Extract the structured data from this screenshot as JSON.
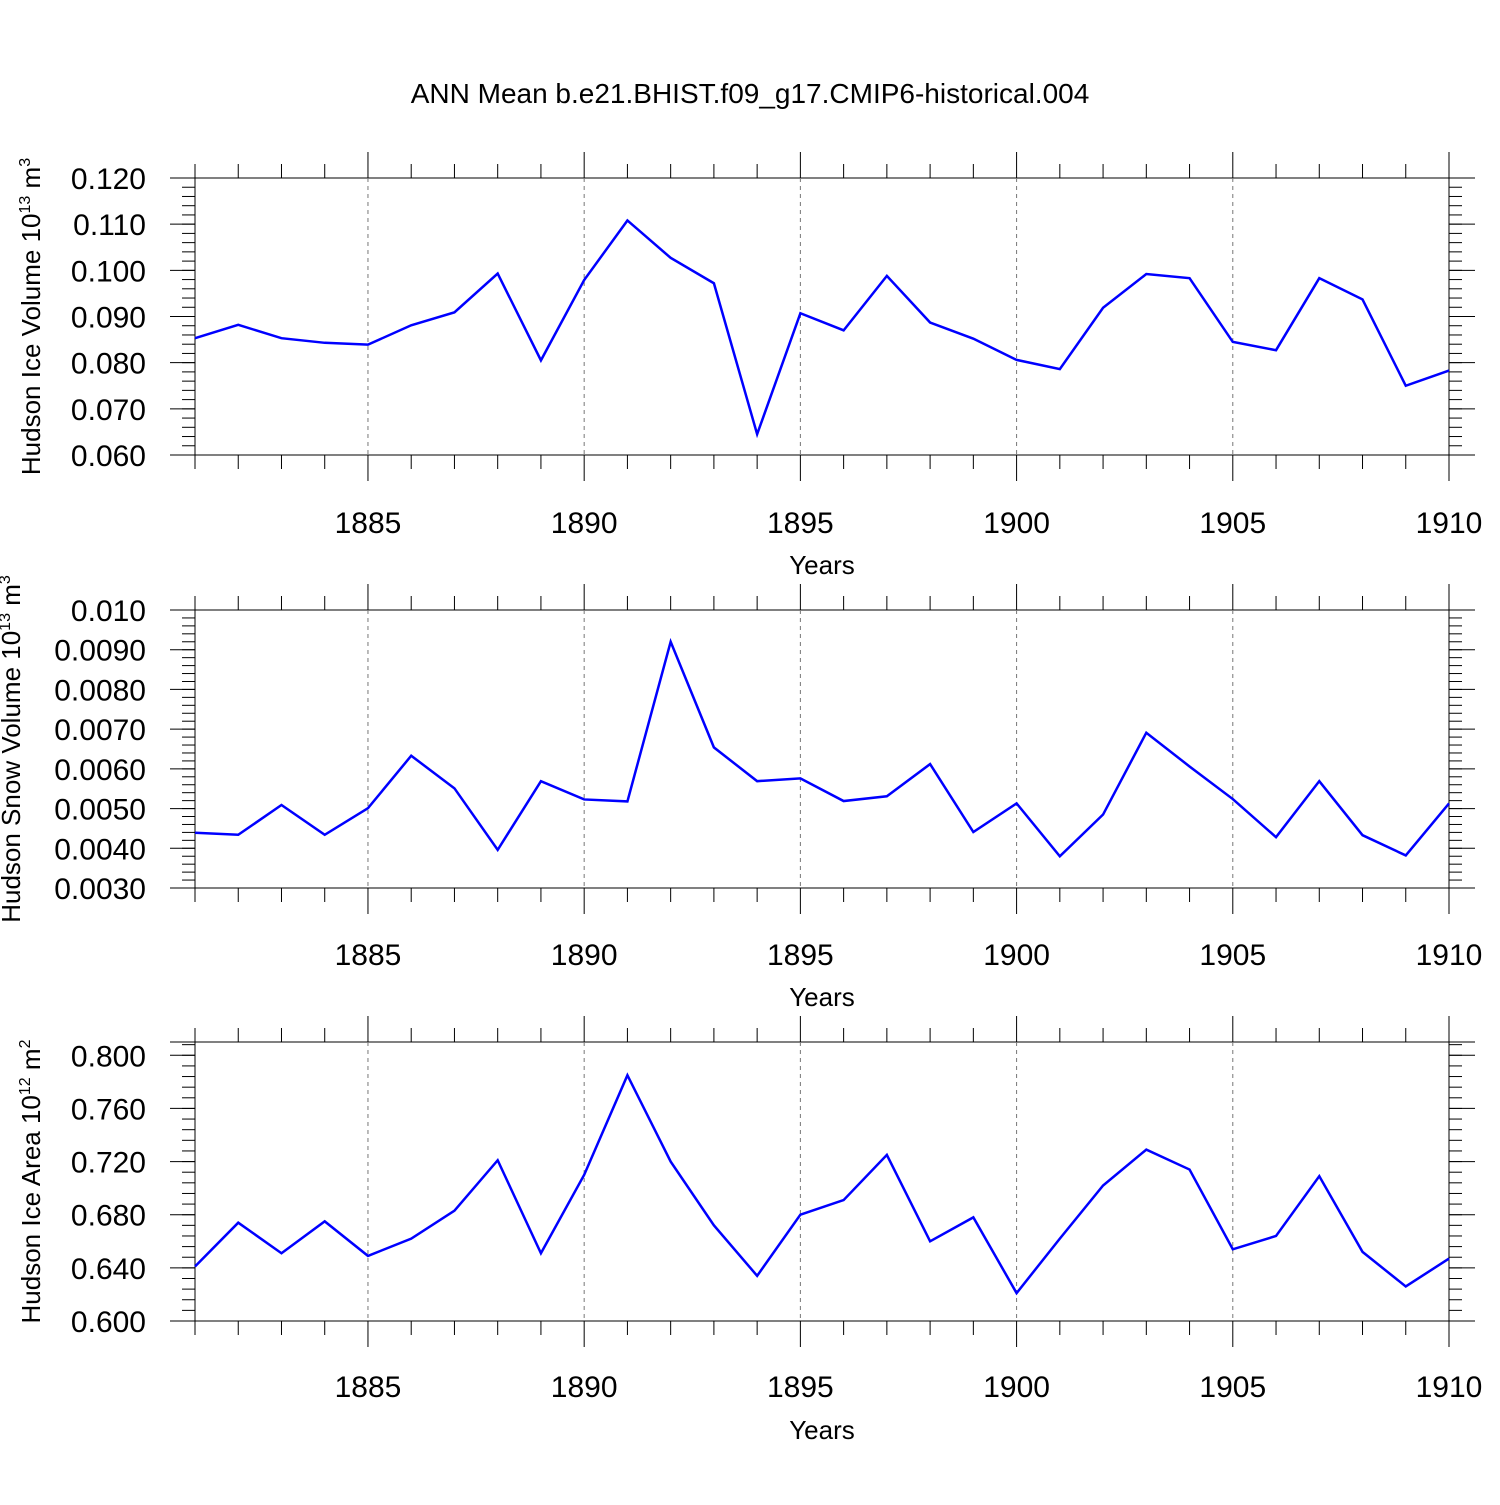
{
  "title": "ANN Mean b.e21.BHIST.f09_g17.CMIP6-historical.004",
  "line_color": "#0000ff",
  "chart_data": [
    {
      "type": "line",
      "ylabel": "Hudson Ice Volume 10",
      "ylabel_exp": "13",
      "ylabel_unit": " m",
      "ylabel_unit_exp": "3",
      "xlabel": "Years",
      "xlim": [
        1881,
        1910
      ],
      "ylim": [
        0.06,
        0.12
      ],
      "yticks": [
        "0.060",
        "0.070",
        "0.080",
        "0.090",
        "0.100",
        "0.110",
        "0.120"
      ],
      "xticks": [
        "1885",
        "1890",
        "1895",
        "1900",
        "1905",
        "1910"
      ],
      "x": [
        1881,
        1882,
        1883,
        1884,
        1885,
        1886,
        1887,
        1888,
        1889,
        1890,
        1891,
        1892,
        1893,
        1894,
        1895,
        1896,
        1897,
        1898,
        1899,
        1900,
        1901,
        1902,
        1903,
        1904,
        1905,
        1906,
        1907,
        1908,
        1909,
        1910
      ],
      "values": [
        0.0853,
        0.0882,
        0.0853,
        0.0843,
        0.0839,
        0.0881,
        0.0909,
        0.0993,
        0.0805,
        0.0979,
        0.1108,
        0.1027,
        0.0972,
        0.0645,
        0.0907,
        0.087,
        0.0988,
        0.0887,
        0.0852,
        0.0806,
        0.0786,
        0.0919,
        0.0992,
        0.0983,
        0.0845,
        0.0827,
        0.0983,
        0.0937,
        0.075,
        0.0783
      ]
    },
    {
      "type": "line",
      "ylabel": "Hudson Snow Volume 10",
      "ylabel_exp": "13",
      "ylabel_unit": " m",
      "ylabel_unit_exp": "3",
      "xlabel": "Years",
      "xlim": [
        1881,
        1910
      ],
      "ylim": [
        0.003,
        0.01
      ],
      "yticks": [
        "0.0030",
        "0.0040",
        "0.0050",
        "0.0060",
        "0.0070",
        "0.0080",
        "0.0090",
        "0.010"
      ],
      "xticks": [
        "1885",
        "1890",
        "1895",
        "1900",
        "1905",
        "1910"
      ],
      "x": [
        1881,
        1882,
        1883,
        1884,
        1885,
        1886,
        1887,
        1888,
        1889,
        1890,
        1891,
        1892,
        1893,
        1894,
        1895,
        1896,
        1897,
        1898,
        1899,
        1900,
        1901,
        1902,
        1903,
        1904,
        1905,
        1906,
        1907,
        1908,
        1909,
        1910
      ],
      "values": [
        0.00439,
        0.00434,
        0.00509,
        0.00434,
        0.00501,
        0.00633,
        0.00551,
        0.00396,
        0.00569,
        0.00523,
        0.00518,
        0.0092,
        0.00654,
        0.00569,
        0.00576,
        0.00519,
        0.00531,
        0.00612,
        0.00441,
        0.00513,
        0.0038,
        0.00485,
        0.00691,
        0.00606,
        0.00524,
        0.00428,
        0.00569,
        0.00433,
        0.00382,
        0.00513
      ]
    },
    {
      "type": "line",
      "ylabel": "Hudson Ice Area 10",
      "ylabel_exp": "12",
      "ylabel_unit": " m",
      "ylabel_unit_exp": "2",
      "xlabel": "Years",
      "xlim": [
        1881,
        1910
      ],
      "ylim": [
        0.6,
        0.81
      ],
      "yticks": [
        "0.600",
        "0.640",
        "0.680",
        "0.720",
        "0.760",
        "0.800"
      ],
      "xticks": [
        "1885",
        "1890",
        "1895",
        "1900",
        "1905",
        "1910"
      ],
      "x": [
        1881,
        1882,
        1883,
        1884,
        1885,
        1886,
        1887,
        1888,
        1889,
        1890,
        1891,
        1892,
        1893,
        1894,
        1895,
        1896,
        1897,
        1898,
        1899,
        1900,
        1901,
        1902,
        1903,
        1904,
        1905,
        1906,
        1907,
        1908,
        1909,
        1910
      ],
      "values": [
        0.641,
        0.674,
        0.651,
        0.675,
        0.649,
        0.662,
        0.683,
        0.721,
        0.651,
        0.71,
        0.785,
        0.72,
        0.672,
        0.634,
        0.68,
        0.691,
        0.725,
        0.66,
        0.678,
        0.621,
        0.662,
        0.702,
        0.729,
        0.714,
        0.654,
        0.664,
        0.709,
        0.652,
        0.626,
        0.647
      ]
    }
  ]
}
